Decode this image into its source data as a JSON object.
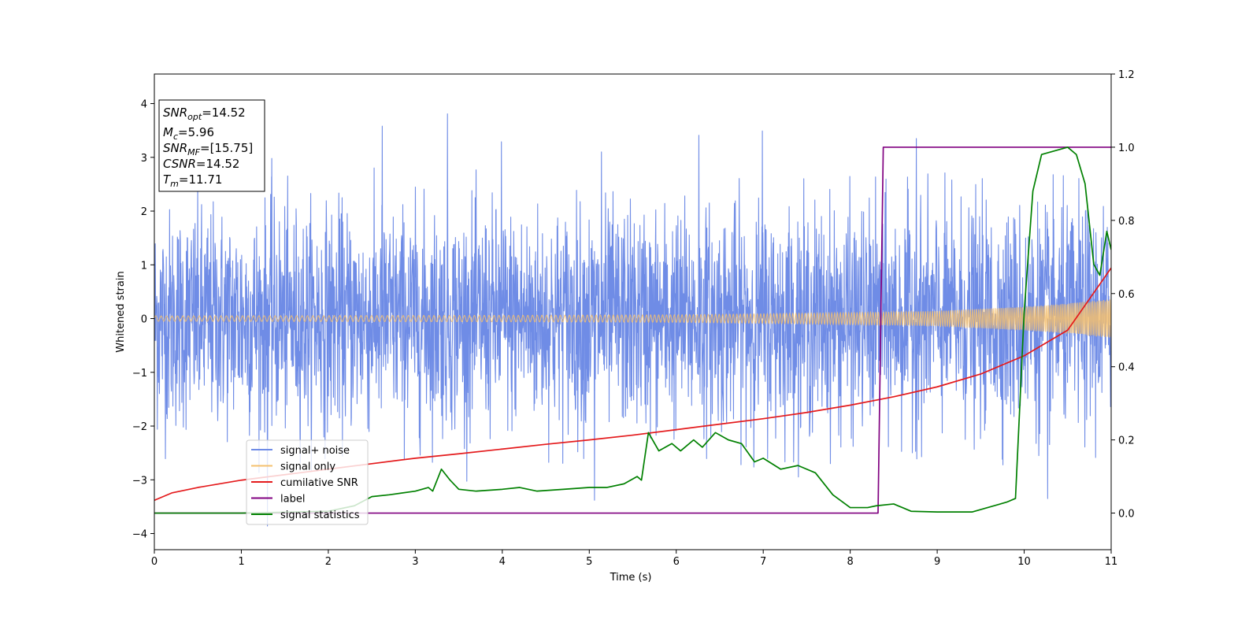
{
  "chart_data": {
    "type": "line",
    "xlabel": "Time (s)",
    "ylabel": "Whitened strain",
    "xlim": [
      0,
      11
    ],
    "ylim_left": [
      -4.3,
      4.55
    ],
    "ylim_right": [
      -0.1,
      1.2
    ],
    "x_ticks": [
      "0",
      "1",
      "2",
      "3",
      "4",
      "5",
      "6",
      "7",
      "8",
      "9",
      "10",
      "11"
    ],
    "y_left_ticks": [
      "4",
      "3",
      "2",
      "1",
      "0",
      "−1",
      "−2",
      "−3",
      "−4"
    ],
    "y_right_ticks": [
      "1.2",
      "1.0",
      "0.8",
      "0.6",
      "0.4",
      "0.2",
      "0.0"
    ],
    "grid": false,
    "legend_position": "lower-left",
    "annotation": {
      "snr_opt": {
        "sym": "SNR",
        "sub": "opt",
        "value": "=14.52"
      },
      "mc": {
        "sym": "M",
        "sub": "c",
        "value": "=5.96"
      },
      "snr_mf": {
        "sym": "SNR",
        "sub": "MF",
        "value": "=[15.75]"
      },
      "csnr": {
        "sym": "CSNR",
        "value": "=14.52"
      },
      "tm": {
        "sym": "T",
        "sub": "m",
        "value": "=11.71"
      }
    },
    "series": [
      {
        "name": "signal+ noise",
        "axis": "left",
        "color": "#6f8ce6",
        "description": "noisy whitened strain, amplitude ~ ±2.5 with spikes to ±3.8",
        "spike_peaks": [
          {
            "x": 1.35,
            "y": 2.98
          },
          {
            "x": 2.62,
            "y": 3.58
          },
          {
            "x": 3.37,
            "y": 3.81
          },
          {
            "x": 3.99,
            "y": 3.29
          },
          {
            "x": 5.14,
            "y": 3.1
          },
          {
            "x": 6.26,
            "y": 3.41
          },
          {
            "x": 6.99,
            "y": 3.49
          },
          {
            "x": 8.76,
            "y": 3.35
          },
          {
            "x": 1.3,
            "y": -3.86
          },
          {
            "x": 5.06,
            "y": -3.38
          },
          {
            "x": 10.27,
            "y": -3.35
          }
        ]
      },
      {
        "name": "signal only",
        "axis": "left",
        "color": "#f5c06e",
        "envelope": [
          [
            0,
            0.05
          ],
          [
            2,
            0.055
          ],
          [
            4,
            0.06
          ],
          [
            6,
            0.07
          ],
          [
            7,
            0.09
          ],
          [
            8,
            0.11
          ],
          [
            9,
            0.14
          ],
          [
            10,
            0.22
          ],
          [
            10.5,
            0.28
          ],
          [
            11,
            0.36
          ]
        ]
      },
      {
        "name": "cumilative SNR",
        "axis": "right",
        "color": "#e41a1c",
        "x": [
          0,
          0.2,
          0.5,
          1,
          1.5,
          2,
          2.5,
          3,
          3.5,
          4,
          4.5,
          5,
          5.5,
          6,
          6.5,
          7,
          7.5,
          8,
          8.5,
          9,
          9.5,
          10,
          10.5,
          11
        ],
        "y": [
          0.035,
          0.055,
          0.07,
          0.09,
          0.105,
          0.12,
          0.135,
          0.15,
          0.162,
          0.175,
          0.188,
          0.2,
          0.213,
          0.228,
          0.243,
          0.258,
          0.275,
          0.295,
          0.318,
          0.345,
          0.38,
          0.43,
          0.5,
          0.67
        ]
      },
      {
        "name": "label",
        "axis": "right",
        "color": "#800080",
        "x": [
          0,
          8.32,
          8.38,
          11
        ],
        "y": [
          0.0,
          0.0,
          1.0,
          1.0
        ]
      },
      {
        "name": "signal statistics",
        "axis": "right",
        "color": "#008000",
        "x": [
          0,
          1,
          2,
          2.3,
          2.5,
          2.7,
          3.0,
          3.15,
          3.2,
          3.3,
          3.4,
          3.5,
          3.7,
          4.0,
          4.2,
          4.4,
          4.7,
          5.0,
          5.2,
          5.4,
          5.55,
          5.6,
          5.68,
          5.8,
          5.95,
          6.05,
          6.2,
          6.3,
          6.45,
          6.6,
          6.75,
          6.9,
          7.0,
          7.2,
          7.4,
          7.6,
          7.8,
          8.0,
          8.2,
          8.3,
          8.5,
          8.7,
          9.0,
          9.4,
          9.8,
          9.9,
          10.0,
          10.1,
          10.2,
          10.35,
          10.5,
          10.6,
          10.7,
          10.8,
          10.87,
          10.95,
          11.0
        ],
        "y": [
          0.0,
          0.0,
          0.005,
          0.02,
          0.045,
          0.05,
          0.06,
          0.07,
          0.06,
          0.12,
          0.09,
          0.065,
          0.06,
          0.065,
          0.07,
          0.06,
          0.065,
          0.07,
          0.07,
          0.08,
          0.1,
          0.09,
          0.22,
          0.17,
          0.19,
          0.17,
          0.2,
          0.18,
          0.22,
          0.2,
          0.19,
          0.14,
          0.15,
          0.12,
          0.13,
          0.11,
          0.05,
          0.015,
          0.015,
          0.02,
          0.025,
          0.005,
          0.003,
          0.003,
          0.03,
          0.04,
          0.55,
          0.88,
          0.98,
          0.99,
          1.0,
          0.98,
          0.9,
          0.68,
          0.65,
          0.77,
          0.72
        ]
      }
    ]
  }
}
